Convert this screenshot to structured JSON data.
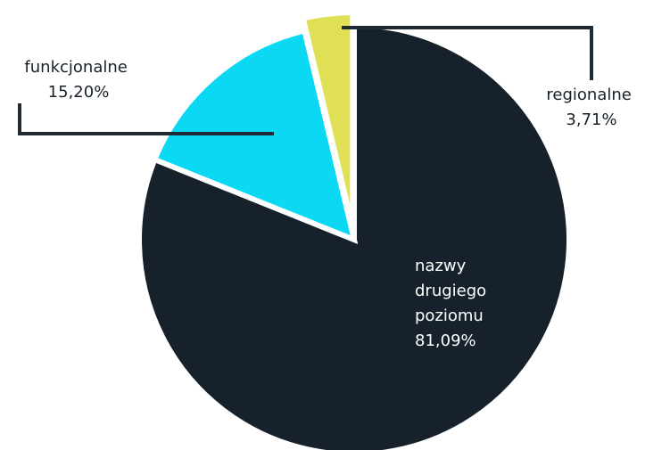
{
  "chart_data": {
    "type": "pie",
    "slices": [
      {
        "label": "nazwy drugiego poziomu",
        "value_label": "81,09%",
        "value": 81.09,
        "color": "#17212b",
        "text_color": "#ffffff",
        "exploded": false
      },
      {
        "label": "funkcjonalne",
        "value_label": "15,20%",
        "value": 15.2,
        "color": "#0bd8f2",
        "text_color": "#17212b",
        "exploded": false
      },
      {
        "label": "regionalne",
        "value_label": "3,71%",
        "value": 3.71,
        "color": "#dfe055",
        "text_color": "#17212b",
        "exploded": true
      }
    ],
    "labels": {
      "main": [
        "nazwy",
        "drugiego",
        "poziomu",
        "81,09%"
      ],
      "functional": [
        "funkcjonalne",
        "15,20%"
      ],
      "regional": [
        "regionalne",
        "3,71%"
      ]
    }
  }
}
